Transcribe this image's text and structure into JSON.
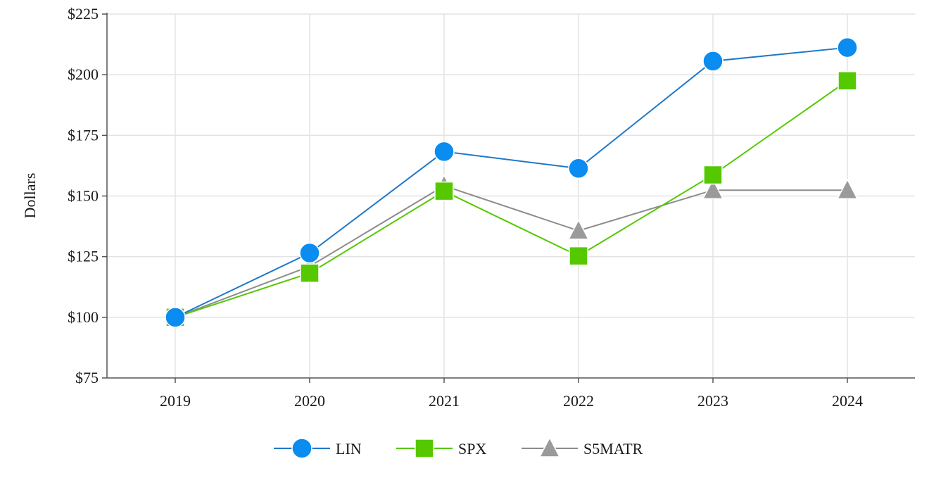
{
  "chart_data": {
    "type": "line",
    "title": "",
    "xlabel": "",
    "ylabel": "Dollars",
    "categories": [
      "2019",
      "2020",
      "2021",
      "2022",
      "2023",
      "2024"
    ],
    "ylim": [
      75,
      225
    ],
    "yticks": [
      75,
      100,
      125,
      150,
      175,
      200,
      225
    ],
    "ytick_labels": [
      "$75",
      "$100",
      "$125",
      "$150",
      "$175",
      "$200",
      "$225"
    ],
    "grid": true,
    "legend_position": "bottom-center",
    "series": [
      {
        "name": "LIN",
        "marker": "circle",
        "color": "#0a8cf0",
        "line_color": "#1f78c8",
        "values": [
          100,
          126.5,
          168.3,
          161.4,
          205.6,
          211.2
        ]
      },
      {
        "name": "SPX",
        "marker": "square",
        "color": "#55c800",
        "line_color": "#55c800",
        "values": [
          100,
          118.2,
          152,
          125.3,
          158.7,
          197.5
        ]
      },
      {
        "name": "S5MATR",
        "marker": "triangle",
        "color": "#9a9a9a",
        "line_color": "#8c8c8c",
        "values": [
          100,
          121,
          154.2,
          135.7,
          152.4,
          152.4
        ]
      }
    ]
  }
}
